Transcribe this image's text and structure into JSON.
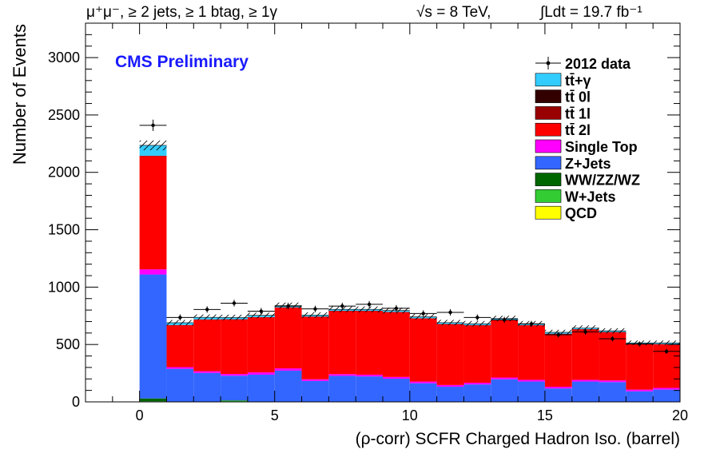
{
  "header": {
    "channel": "μ⁺μ⁻, ≥ 2 jets, ≥ 1 btag, ≥ 1γ",
    "energy": "√s = 8 TeV,",
    "lumi": "∫Ldt = 19.7 fb⁻¹"
  },
  "cms_label": "CMS Preliminary",
  "chart_data": {
    "type": "bar",
    "stacked": true,
    "histogram": true,
    "title": "",
    "xlabel": "(ρ-corr) SCFR Charged Hadron Iso. (barrel)",
    "ylabel": "Number of Events",
    "xlim": [
      -2,
      20
    ],
    "ylim": [
      0,
      3300
    ],
    "x_ticks": [
      0,
      5,
      10,
      15,
      20
    ],
    "y_ticks": [
      0,
      500,
      1000,
      1500,
      2000,
      2500,
      3000
    ],
    "x_tick_labels": [
      "0",
      "5",
      "10",
      "15",
      "20"
    ],
    "y_tick_labels": [
      "0",
      "500",
      "1000",
      "1500",
      "2000",
      "2500",
      "3000"
    ],
    "grid": false,
    "legend_position": "top-right",
    "bins_low": [
      0,
      1,
      2,
      3,
      4,
      5,
      6,
      7,
      8,
      9,
      10,
      11,
      12,
      13,
      14,
      15,
      16,
      17,
      18,
      19
    ],
    "bin_width": 1,
    "series": [
      {
        "name": "QCD",
        "color": "#ffff00",
        "values": [
          0,
          0,
          0,
          0,
          0,
          0,
          0,
          0,
          0,
          0,
          0,
          0,
          0,
          0,
          0,
          0,
          0,
          0,
          0,
          0
        ]
      },
      {
        "name": "W+Jets",
        "color": "#33cc33",
        "values": [
          5,
          0,
          0,
          10,
          0,
          0,
          0,
          0,
          0,
          0,
          0,
          0,
          0,
          0,
          0,
          0,
          0,
          0,
          0,
          0
        ]
      },
      {
        "name": "WW/ZZ/WZ",
        "color": "#006600",
        "values": [
          25,
          3,
          2,
          3,
          2,
          2,
          2,
          2,
          2,
          2,
          2,
          2,
          2,
          2,
          2,
          2,
          2,
          2,
          2,
          2
        ]
      },
      {
        "name": "Z+Jets",
        "color": "#3366ff",
        "values": [
          1080,
          285,
          250,
          215,
          235,
          270,
          180,
          225,
          220,
          200,
          160,
          130,
          150,
          195,
          175,
          115,
          175,
          170,
          90,
          105
        ]
      },
      {
        "name": "Single Top",
        "color": "#ff00ff",
        "values": [
          45,
          15,
          15,
          15,
          20,
          20,
          15,
          15,
          15,
          15,
          15,
          15,
          15,
          15,
          15,
          15,
          15,
          15,
          15,
          15
        ]
      },
      {
        "name": "tt̄ 2l",
        "color": "#ff0000",
        "values": [
          985,
          365,
          450,
          475,
          480,
          530,
          545,
          550,
          555,
          565,
          550,
          530,
          500,
          500,
          475,
          460,
          440,
          420,
          395,
          380
        ]
      },
      {
        "name": "tt̄ 1l",
        "color": "#990000",
        "values": [
          5,
          2,
          2,
          2,
          2,
          2,
          2,
          2,
          2,
          2,
          2,
          2,
          2,
          2,
          2,
          2,
          2,
          2,
          2,
          2
        ]
      },
      {
        "name": "tt̄ 0l",
        "color": "#330000",
        "values": [
          0,
          0,
          0,
          0,
          0,
          0,
          0,
          0,
          0,
          0,
          0,
          0,
          0,
          0,
          0,
          0,
          0,
          0,
          0,
          0
        ]
      },
      {
        "name": "tt̄+γ",
        "color": "#33ccff",
        "values": [
          90,
          20,
          18,
          15,
          15,
          15,
          12,
          12,
          12,
          12,
          12,
          12,
          12,
          12,
          12,
          12,
          10,
          10,
          10,
          10
        ]
      }
    ],
    "data": {
      "name": "2012 data",
      "x": [
        0.5,
        1.5,
        2.5,
        3.5,
        4.5,
        5.5,
        6.5,
        7.5,
        8.5,
        9.5,
        10.5,
        11.5,
        12.5,
        13.5,
        14.5,
        15.5,
        16.5,
        17.5,
        18.5,
        19.5
      ],
      "y": [
        2410,
        735,
        805,
        860,
        790,
        835,
        810,
        835,
        850,
        815,
        770,
        780,
        735,
        715,
        680,
        585,
        610,
        550,
        505,
        440
      ],
      "err": [
        49,
        27,
        28,
        29,
        28,
        29,
        28,
        29,
        29,
        29,
        28,
        28,
        27,
        27,
        26,
        24,
        25,
        23,
        22,
        21
      ]
    }
  }
}
